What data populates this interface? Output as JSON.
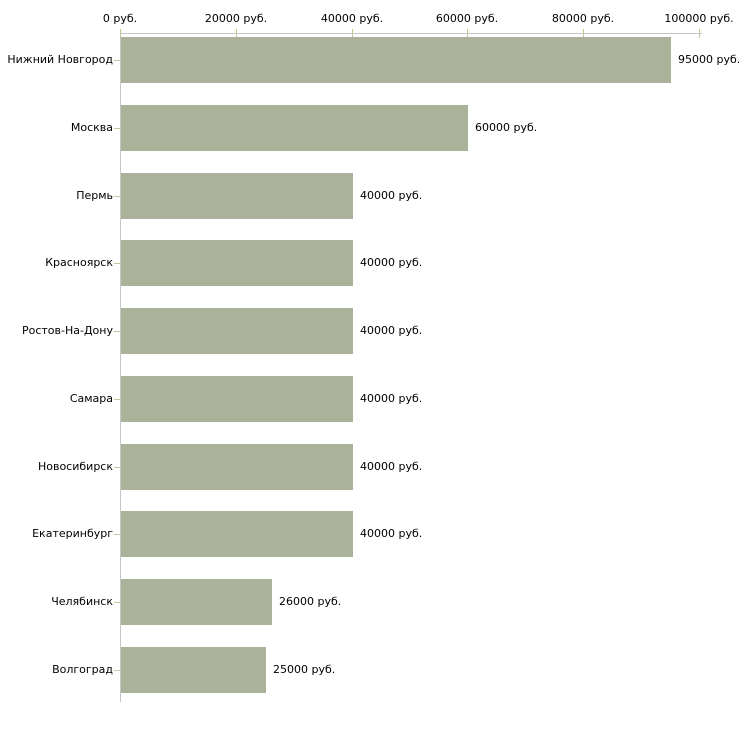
{
  "chart": {
    "background_color": "#ffffff",
    "bar_color": "#abb29a",
    "axis_color": "#c6c6c6",
    "tick_color": "#c3c89b",
    "text_color": "#000000",
    "currency_unit": "руб."
  },
  "chart_data": {
    "type": "bar",
    "orientation": "horizontal",
    "title": "",
    "xlabel": "",
    "ylabel": "",
    "xlim": [
      0,
      100000
    ],
    "grid": false,
    "legend": false,
    "axis_position": "top",
    "categories": [
      "Нижний Новгород",
      "Москва",
      "Пермь",
      "Красноярск",
      "Ростов-На-Дону",
      "Самара",
      "Новосибирск",
      "Екатеринбург",
      "Челябинск",
      "Волгоград"
    ],
    "values": [
      95000,
      60000,
      40000,
      40000,
      40000,
      40000,
      40000,
      40000,
      26000,
      25000
    ],
    "value_labels": [
      "95000 руб.",
      "60000 руб.",
      "40000 руб.",
      "40000 руб.",
      "40000 руб.",
      "40000 руб.",
      "40000 руб.",
      "40000 руб.",
      "26000 руб.",
      "25000 руб."
    ],
    "x_ticks": [
      {
        "value": 0,
        "label": "0 руб."
      },
      {
        "value": 20000,
        "label": "20000 руб."
      },
      {
        "value": 40000,
        "label": "40000 руб."
      },
      {
        "value": 60000,
        "label": "60000 руб."
      },
      {
        "value": 80000,
        "label": "80000 руб."
      },
      {
        "value": 100000,
        "label": "100000 руб."
      }
    ]
  }
}
